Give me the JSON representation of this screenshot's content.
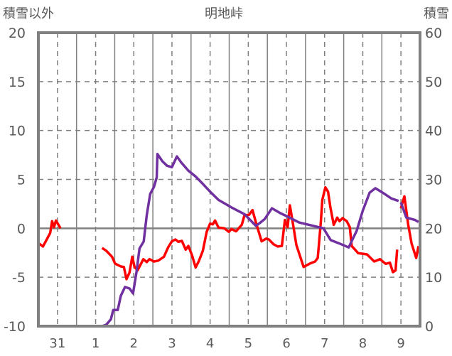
{
  "chart_data": {
    "type": "line",
    "title": "明地峠",
    "ylabel_left": "積雪以外",
    "ylabel_right": "積雪",
    "xlim": [
      -0.5,
      9.5
    ],
    "ylim_left": [
      -10,
      20
    ],
    "ylim_right": [
      0,
      60
    ],
    "x_tick_values": [
      0,
      1,
      2,
      3,
      4,
      5,
      6,
      7,
      8,
      9
    ],
    "x_tick_labels": [
      "31",
      "1",
      "2",
      "3",
      "4",
      "5",
      "6",
      "7",
      "8",
      "9"
    ],
    "y_left_ticks": [
      -10,
      -5,
      0,
      5,
      10,
      15,
      20
    ],
    "y_left_tick_labels": [
      "-10",
      "-5",
      "0",
      "5",
      "10",
      "15",
      "20"
    ],
    "y_right_ticks": [
      0,
      10,
      20,
      30,
      40,
      50,
      60
    ],
    "y_right_tick_labels": [
      "0",
      "10",
      "20",
      "30",
      "40",
      "50",
      "60"
    ],
    "grid": true,
    "colors": {
      "axis": "#808080",
      "grid": "#808080",
      "text": "#595959"
    },
    "series": [
      {
        "name": "積雪以外",
        "axis": "left",
        "color": "#ff0000",
        "segments": [
          [
            [
              -0.49,
              -1.53
            ],
            [
              -0.38,
              -1.86
            ],
            [
              -0.3,
              -1.28
            ],
            [
              -0.19,
              -0.48
            ],
            [
              -0.14,
              0.73
            ],
            [
              -0.09,
              0.12
            ],
            [
              -0.04,
              0.8
            ],
            [
              0.08,
              0
            ]
          ],
          [
            [
              1.17,
              -2.0
            ],
            [
              1.28,
              -2.3
            ],
            [
              1.43,
              -2.9
            ],
            [
              1.51,
              -3.6
            ],
            [
              1.66,
              -3.9
            ],
            [
              1.74,
              -3.95
            ],
            [
              1.81,
              -5.2
            ],
            [
              1.89,
              -4.5
            ],
            [
              1.96,
              -2.9
            ],
            [
              2.02,
              -3.95
            ],
            [
              2.1,
              -4.3
            ],
            [
              2.19,
              -3.6
            ],
            [
              2.25,
              -3.15
            ],
            [
              2.34,
              -3.45
            ],
            [
              2.41,
              -3.15
            ],
            [
              2.53,
              -3.4
            ],
            [
              2.64,
              -3.3
            ],
            [
              2.79,
              -2.9
            ],
            [
              2.9,
              -1.94
            ],
            [
              3.0,
              -1.33
            ],
            [
              3.09,
              -1.14
            ],
            [
              3.17,
              -1.38
            ],
            [
              3.26,
              -1.28
            ],
            [
              3.36,
              -2.18
            ],
            [
              3.43,
              -1.8
            ],
            [
              3.53,
              -2.8
            ],
            [
              3.62,
              -4.0
            ],
            [
              3.7,
              -3.4
            ],
            [
              3.81,
              -2.3
            ],
            [
              3.91,
              -0.36
            ],
            [
              4.0,
              0.48
            ],
            [
              4.07,
              0.41
            ],
            [
              4.13,
              0.8
            ],
            [
              4.22,
              0.07
            ],
            [
              4.37,
              0
            ],
            [
              4.49,
              -0.36
            ],
            [
              4.56,
              -0.07
            ],
            [
              4.68,
              -0.3
            ],
            [
              4.83,
              0.36
            ],
            [
              4.9,
              1.33
            ],
            [
              5.02,
              1.38
            ],
            [
              5.11,
              1.86
            ],
            [
              5.2,
              0.6
            ],
            [
              5.35,
              -1.33
            ],
            [
              5.47,
              -1.04
            ],
            [
              5.54,
              -1.14
            ],
            [
              5.66,
              -1.62
            ],
            [
              5.77,
              -1.86
            ],
            [
              5.88,
              -1.8
            ],
            [
              5.96,
              0.85
            ],
            [
              6.03,
              0.12
            ],
            [
              6.09,
              2.35
            ],
            [
              6.15,
              0.97
            ],
            [
              6.26,
              -1.7
            ],
            [
              6.45,
              -3.95
            ],
            [
              6.6,
              -3.63
            ],
            [
              6.75,
              -3.39
            ],
            [
              6.82,
              -3.03
            ],
            [
              6.9,
              0.6
            ],
            [
              6.94,
              2.9
            ],
            [
              7.02,
              4.19
            ],
            [
              7.09,
              3.75
            ],
            [
              7.15,
              2.18
            ],
            [
              7.24,
              0.36
            ],
            [
              7.33,
              1.09
            ],
            [
              7.39,
              0.73
            ],
            [
              7.47,
              1.04
            ],
            [
              7.58,
              0.73
            ],
            [
              7.66,
              0.12
            ],
            [
              7.71,
              -1.82
            ],
            [
              7.77,
              -2.06
            ],
            [
              7.88,
              -2.54
            ],
            [
              8.0,
              -2.6
            ],
            [
              8.11,
              -2.66
            ],
            [
              8.3,
              -3.39
            ],
            [
              8.45,
              -3.15
            ],
            [
              8.6,
              -3.63
            ],
            [
              8.71,
              -3.51
            ],
            [
              8.79,
              -4.48
            ],
            [
              8.86,
              -4.3
            ],
            [
              8.9,
              -2.18
            ]
          ],
          [
            [
              9.0,
              2.06
            ],
            [
              9.09,
              3.27
            ],
            [
              9.19,
              0.36
            ],
            [
              9.28,
              -1.57
            ],
            [
              9.4,
              -3.03
            ],
            [
              9.46,
              -1.82
            ]
          ]
        ]
      },
      {
        "name": "積雪",
        "axis": "right",
        "color": "#7030a0",
        "segments": [
          [
            [
              -0.49,
              0
            ],
            [
              0.08,
              0
            ]
          ],
          [
            [
              1.17,
              0
            ],
            [
              1.28,
              0.3
            ],
            [
              1.4,
              1.4
            ],
            [
              1.46,
              3.3
            ],
            [
              1.58,
              3.3
            ],
            [
              1.66,
              6.2
            ],
            [
              1.77,
              8.0
            ],
            [
              1.89,
              7.7
            ],
            [
              1.98,
              6.7
            ],
            [
              2.07,
              11.0
            ],
            [
              2.15,
              15.9
            ],
            [
              2.26,
              17.3
            ],
            [
              2.34,
              22.7
            ],
            [
              2.43,
              27.0
            ],
            [
              2.53,
              28.5
            ],
            [
              2.6,
              30.4
            ],
            [
              2.62,
              35.2
            ],
            [
              2.75,
              33.7
            ],
            [
              2.87,
              32.8
            ],
            [
              3.0,
              32.5
            ],
            [
              3.13,
              34.7
            ],
            [
              3.24,
              33.5
            ],
            [
              3.43,
              31.8
            ],
            [
              3.62,
              30.6
            ],
            [
              3.77,
              29.4
            ],
            [
              4.0,
              27.5
            ],
            [
              4.22,
              25.8
            ],
            [
              4.6,
              24.1
            ],
            [
              4.9,
              22.9
            ],
            [
              5.2,
              20.5
            ],
            [
              5.32,
              21.2
            ],
            [
              5.43,
              21.9
            ],
            [
              5.62,
              24.1
            ],
            [
              5.84,
              23.1
            ],
            [
              6.03,
              22.4
            ],
            [
              6.33,
              21.2
            ],
            [
              6.71,
              20.5
            ],
            [
              6.97,
              20.0
            ],
            [
              7.16,
              17.6
            ],
            [
              7.39,
              16.9
            ],
            [
              7.63,
              16.1
            ],
            [
              7.84,
              19.5
            ],
            [
              8.0,
              23.6
            ],
            [
              8.18,
              27.3
            ],
            [
              8.33,
              28.2
            ],
            [
              8.52,
              27.3
            ],
            [
              8.75,
              26.1
            ],
            [
              8.94,
              25.6
            ]
          ],
          [
            [
              9.0,
              25.3
            ],
            [
              9.14,
              22.2
            ],
            [
              9.37,
              21.7
            ],
            [
              9.46,
              21.3
            ]
          ]
        ]
      }
    ]
  }
}
